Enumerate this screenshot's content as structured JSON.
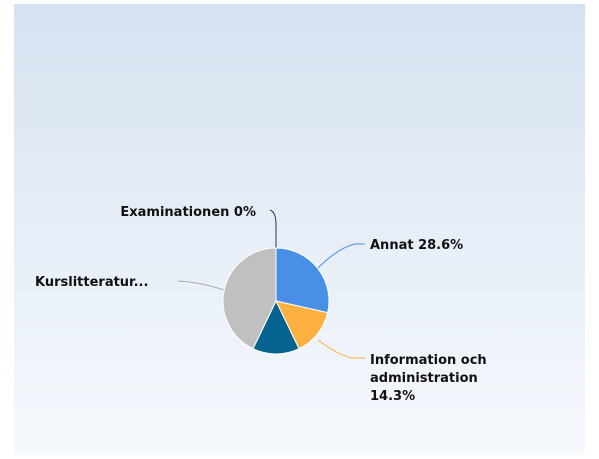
{
  "chart_data": {
    "type": "pie",
    "categories": [
      "Annat",
      "Information och administration",
      null,
      "Kurslitteratur...",
      "Examinationen"
    ],
    "values": [
      28.6,
      14.3,
      14.3,
      42.9,
      0
    ],
    "value_labels": [
      "28.6%",
      "14.3%",
      null,
      null,
      "0%"
    ],
    "colors": [
      "#4a8fe6",
      "#fbb040",
      "#05638f",
      "#c0c0c0",
      "#1f3a5f"
    ]
  }
}
